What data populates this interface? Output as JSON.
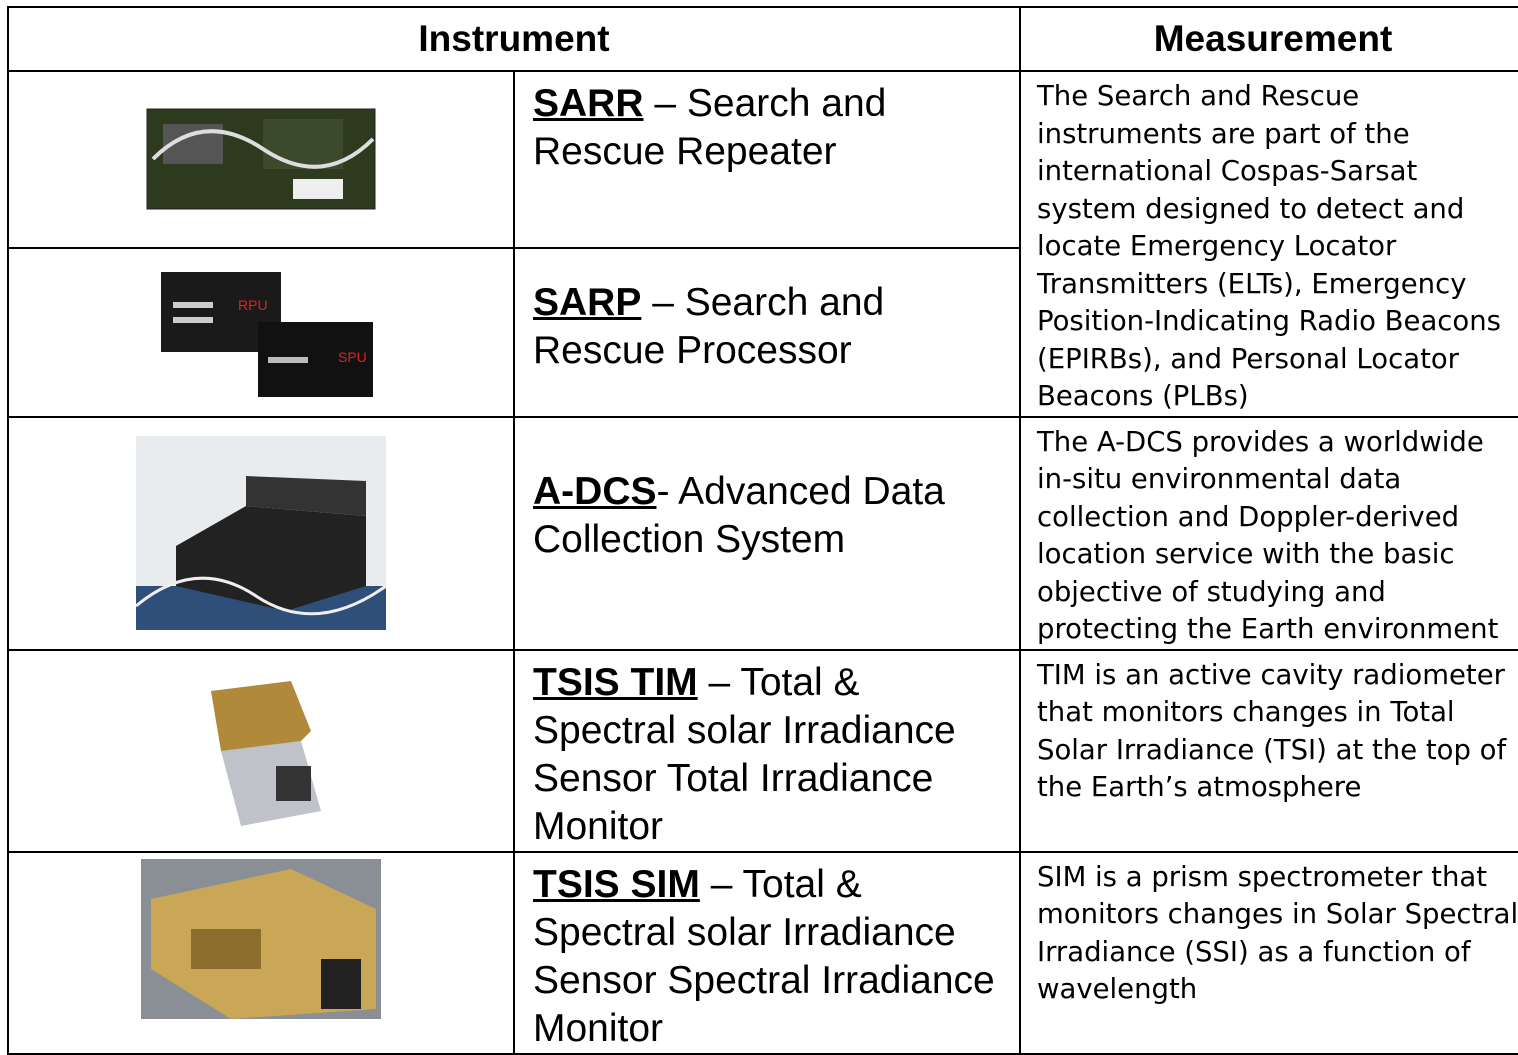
{
  "table": {
    "header": [
      "Instrument",
      "Measurement"
    ],
    "rows": [
      {
        "acronym": "SARR",
        "name": " – Search and Rescue Repeater"
      },
      {
        "acronym": "SARP",
        "name": " – Search and Rescue Processor",
        "image_labels": [
          "RPU",
          "SPU"
        ]
      },
      {
        "acronym": "A-DCS",
        "name": "- Advanced Data Collection System"
      },
      {
        "acronym": "TSIS TIM",
        "name": " – Total & Spectral solar Irradiance Sensor Total Irradiance Monitor"
      },
      {
        "acronym": "TSIS SIM",
        "name": " – Total  & Spectral solar Irradiance Sensor Spectral Irradiance Monitor"
      }
    ],
    "measurements": [
      "The Search and Rescue instruments are part of the international Cospas-Sarsat system designed to detect and locate Emergency Locator Transmitters (ELTs), Emergency Position-Indicating Radio Beacons (EPIRBs), and Personal Locator Beacons (PLBs)",
      "The A-DCS provides a worldwide in-situ environmental data collection and Doppler-derived location service with the basic objective of studying and protecting the Earth environment",
      "TIM is an active cavity radiometer that monitors changes in Total Solar Irradiance (TSI) at the top of the Earth’s atmosphere",
      "SIM is a prism spectrometer that monitors changes in Solar Spectral Irradiance (SSI) as a function of wavelength"
    ]
  }
}
